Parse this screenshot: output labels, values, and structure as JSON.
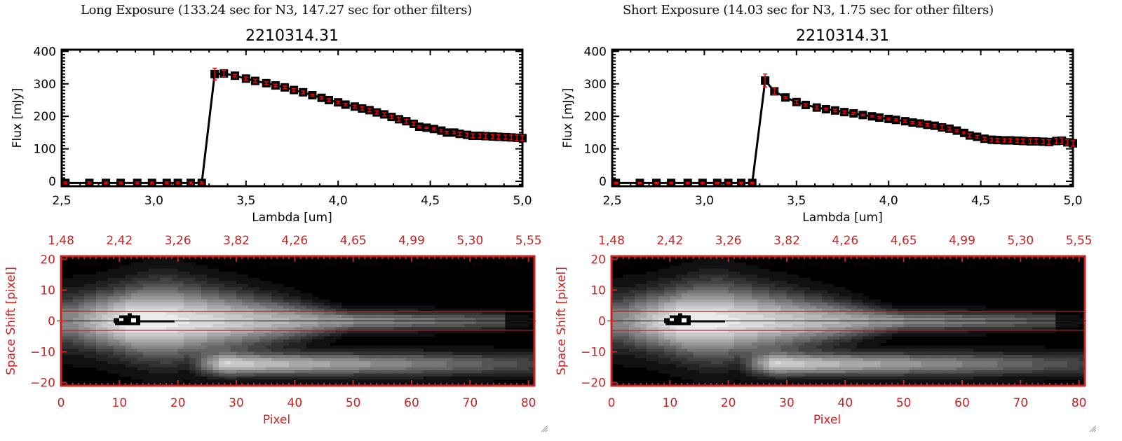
{
  "panels": [
    {
      "exposure_title": "Long Exposure (133.24 sec for N3, 147.27 sec for other filters)",
      "object_title": "2210314.31"
    },
    {
      "exposure_title": "Short Exposure (14.03 sec for N3, 1.75 sec for other filters)",
      "object_title": "2210314.31"
    }
  ],
  "chart_data": [
    {
      "type": "line",
      "title": "2210314.31",
      "subtitle": "Long Exposure (133.24 sec for N3, 147.27 sec for other filters)",
      "xlabel": "Lambda [um]",
      "ylabel": "Flux [mJy]",
      "xlim": [
        2.5,
        5.0
      ],
      "ylim": [
        -15,
        405
      ],
      "xticks": [
        "2.5",
        "3.0",
        "3.5",
        "4.0",
        "4.5",
        "5.0"
      ],
      "yticks": [
        "0",
        "100",
        "200",
        "300",
        "400"
      ],
      "grid": false,
      "line_color": "#000000",
      "errorbar_color": "#ff0000",
      "x": [
        2.52,
        2.65,
        2.74,
        2.82,
        2.91,
        2.99,
        3.07,
        3.13,
        3.2,
        3.26,
        3.33,
        3.38,
        3.44,
        3.5,
        3.55,
        3.61,
        3.66,
        3.71,
        3.76,
        3.81,
        3.86,
        3.91,
        3.95,
        4.0,
        4.04,
        4.09,
        4.13,
        4.17,
        4.21,
        4.25,
        4.29,
        4.33,
        4.37,
        4.41,
        4.44,
        4.48,
        4.52,
        4.56,
        4.59,
        4.63,
        4.66,
        4.7,
        4.73,
        4.77,
        4.8,
        4.84,
        4.87,
        4.91,
        4.94,
        4.97,
        5.0
      ],
      "y": [
        -5,
        -5,
        -5,
        -5,
        -5,
        -5,
        -5,
        -5,
        -5,
        -5,
        330,
        332,
        325,
        316,
        309,
        302,
        295,
        289,
        281,
        274,
        265,
        257,
        250,
        243,
        236,
        230,
        224,
        219,
        212,
        206,
        198,
        191,
        185,
        177,
        168,
        165,
        161,
        156,
        150,
        150,
        146,
        143,
        140,
        140,
        139,
        138,
        137,
        136,
        135,
        134,
        133
      ],
      "yerr": [
        3,
        3,
        3,
        3,
        3,
        3,
        3,
        3,
        3,
        3,
        18,
        10,
        4,
        5,
        5,
        4,
        4,
        4,
        4,
        4,
        3,
        4,
        4,
        4,
        4,
        4,
        5,
        5,
        5,
        5,
        5,
        6,
        6,
        5,
        3,
        2,
        3,
        3,
        4,
        4,
        5,
        6,
        6,
        6,
        7,
        6,
        7,
        6,
        7,
        8,
        8
      ]
    },
    {
      "type": "line",
      "title": "2210314.31",
      "subtitle": "Short Exposure (14.03 sec for N3, 1.75 sec for other filters)",
      "xlabel": "Lambda [um]",
      "ylabel": "Flux [mJy]",
      "xlim": [
        2.5,
        5.0
      ],
      "ylim": [
        -15,
        405
      ],
      "xticks": [
        "2.5",
        "3.0",
        "3.5",
        "4.0",
        "4.5",
        "5.0"
      ],
      "yticks": [
        "0",
        "100",
        "200",
        "300",
        "400"
      ],
      "grid": false,
      "line_color": "#000000",
      "errorbar_color": "#ff0000",
      "x": [
        2.52,
        2.65,
        2.74,
        2.82,
        2.91,
        2.99,
        3.07,
        3.13,
        3.2,
        3.26,
        3.33,
        3.38,
        3.44,
        3.5,
        3.55,
        3.61,
        3.66,
        3.71,
        3.76,
        3.81,
        3.86,
        3.91,
        3.95,
        4.0,
        4.04,
        4.09,
        4.13,
        4.17,
        4.21,
        4.25,
        4.29,
        4.33,
        4.37,
        4.41,
        4.44,
        4.48,
        4.52,
        4.56,
        4.59,
        4.63,
        4.66,
        4.7,
        4.73,
        4.77,
        4.8,
        4.84,
        4.87,
        4.91,
        4.94,
        4.97,
        5.0
      ],
      "y": [
        -5,
        -5,
        -5,
        -5,
        -5,
        -5,
        -5,
        -5,
        -5,
        -5,
        310,
        277,
        258,
        244,
        235,
        227,
        222,
        218,
        213,
        209,
        204,
        200,
        196,
        192,
        189,
        185,
        181,
        178,
        174,
        171,
        166,
        162,
        156,
        149,
        141,
        137,
        131,
        128,
        127,
        126,
        126,
        125,
        124,
        123,
        123,
        122,
        121,
        124,
        125,
        120,
        117
      ],
      "yerr": [
        2,
        2,
        2,
        2,
        2,
        2,
        2,
        2,
        2,
        2,
        20,
        10,
        3,
        5,
        4,
        5,
        3,
        4,
        4,
        3,
        2,
        2,
        3,
        3,
        3,
        4,
        3,
        4,
        4,
        4,
        6,
        5,
        3,
        3,
        5,
        4,
        5,
        5,
        5,
        5,
        5,
        6,
        6,
        7,
        7,
        6,
        7,
        8,
        8,
        8,
        8
      ]
    },
    {
      "type": "heatmap",
      "title": "Long Exposure 2D spectrum",
      "xlabel": "Pixel",
      "ylabel": "Space Shift [pixel]",
      "xlim": [
        0,
        81
      ],
      "ylim": [
        -21,
        21
      ],
      "xticks": [
        "0",
        "10",
        "20",
        "30",
        "40",
        "50",
        "60",
        "70",
        "80"
      ],
      "yticks": [
        "-20",
        "-10",
        "0",
        "10",
        "20"
      ],
      "top_xticks": [
        "1.48",
        "2.42",
        "3.26",
        "3.82",
        "4.26",
        "4.65",
        "4.99",
        "5.30",
        "5.55"
      ],
      "axis_color": "#cc2222",
      "aperture_lines": [
        -3,
        3
      ],
      "center_line": 0,
      "colormap": "gray"
    },
    {
      "type": "heatmap",
      "title": "Short Exposure 2D spectrum",
      "xlabel": "Pixel",
      "ylabel": "Space Shift [pixel]",
      "xlim": [
        0,
        81
      ],
      "ylim": [
        -21,
        21
      ],
      "xticks": [
        "0",
        "10",
        "20",
        "30",
        "40",
        "50",
        "60",
        "70",
        "80"
      ],
      "yticks": [
        "-20",
        "-10",
        "0",
        "10",
        "20"
      ],
      "top_xticks": [
        "1.48",
        "2.42",
        "3.26",
        "3.82",
        "4.26",
        "4.65",
        "4.99",
        "5.30",
        "5.55"
      ],
      "axis_color": "#cc2222",
      "aperture_lines": [
        -3,
        3
      ],
      "center_line": 0,
      "colormap": "gray"
    }
  ]
}
